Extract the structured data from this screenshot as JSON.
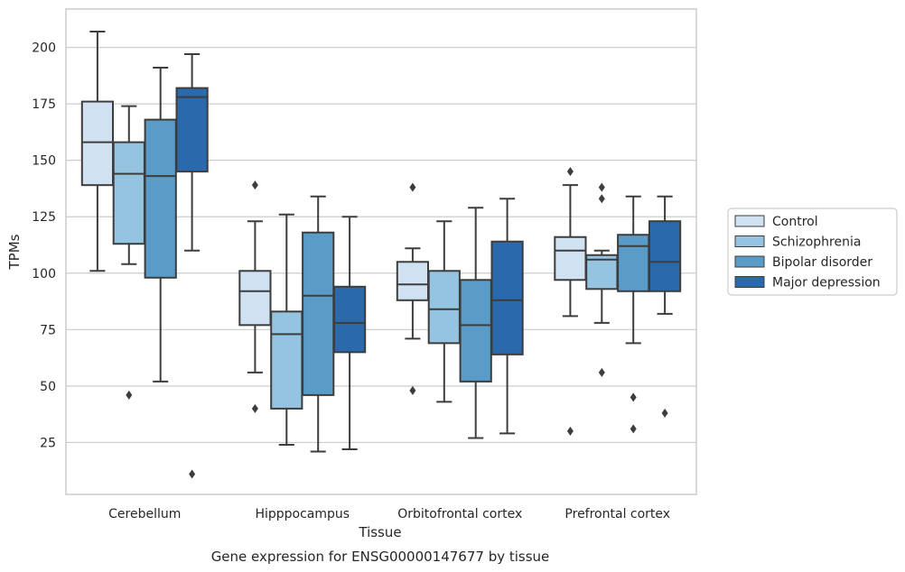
{
  "chart_data": {
    "type": "box",
    "caption": "Gene expression for ENSG00000147677 by tissue",
    "xlabel": "Tissue",
    "ylabel": "TPMs",
    "ylim": [
      2,
      217
    ],
    "yticks": [
      25,
      50,
      75,
      100,
      125,
      150,
      175,
      200
    ],
    "grid": true,
    "legend_position": "right",
    "categories": [
      "Cerebellum",
      "Hipppocampus",
      "Orbitofrontal cortex",
      "Prefrontal cortex"
    ],
    "series": [
      {
        "name": "Control",
        "color": "#d0e1f2",
        "boxes": [
          {
            "whisker_low": 101,
            "q1": 139,
            "median": 158,
            "q3": 176,
            "whisker_high": 207,
            "outliers": []
          },
          {
            "whisker_low": 56,
            "q1": 77,
            "median": 92,
            "q3": 101,
            "whisker_high": 123,
            "outliers": [
              139,
              40
            ]
          },
          {
            "whisker_low": 71,
            "q1": 88,
            "median": 95,
            "q3": 105,
            "whisker_high": 111,
            "outliers": [
              138,
              48
            ]
          },
          {
            "whisker_low": 81,
            "q1": 97,
            "median": 110,
            "q3": 116,
            "whisker_high": 139,
            "outliers": [
              145,
              30
            ]
          }
        ]
      },
      {
        "name": "Schizophrenia",
        "color": "#94c4df",
        "boxes": [
          {
            "whisker_low": 104,
            "q1": 113,
            "median": 144,
            "q3": 158,
            "whisker_high": 174,
            "outliers": [
              46
            ]
          },
          {
            "whisker_low": 24,
            "q1": 40,
            "median": 73,
            "q3": 83,
            "whisker_high": 126,
            "outliers": []
          },
          {
            "whisker_low": 43,
            "q1": 69,
            "median": 84,
            "q3": 101,
            "whisker_high": 123,
            "outliers": []
          },
          {
            "whisker_low": 78,
            "q1": 93,
            "median": 106,
            "q3": 108,
            "whisker_high": 110,
            "outliers": [
              138,
              133,
              56
            ]
          }
        ]
      },
      {
        "name": "Bipolar disorder",
        "color": "#5a9bc7",
        "boxes": [
          {
            "whisker_low": 52,
            "q1": 98,
            "median": 143,
            "q3": 168,
            "whisker_high": 191,
            "outliers": []
          },
          {
            "whisker_low": 21,
            "q1": 46,
            "median": 90,
            "q3": 118,
            "whisker_high": 134,
            "outliers": []
          },
          {
            "whisker_low": 27,
            "q1": 52,
            "median": 77,
            "q3": 97,
            "whisker_high": 129,
            "outliers": []
          },
          {
            "whisker_low": 69,
            "q1": 92,
            "median": 112,
            "q3": 117,
            "whisker_high": 134,
            "outliers": [
              45,
              31
            ]
          }
        ]
      },
      {
        "name": "Major depression",
        "color": "#2a6aac",
        "boxes": [
          {
            "whisker_low": 110,
            "q1": 145,
            "median": 178,
            "q3": 182,
            "whisker_high": 197,
            "outliers": [
              11
            ]
          },
          {
            "whisker_low": 22,
            "q1": 65,
            "median": 78,
            "q3": 94,
            "whisker_high": 125,
            "outliers": []
          },
          {
            "whisker_low": 29,
            "q1": 64,
            "median": 88,
            "q3": 114,
            "whisker_high": 133,
            "outliers": []
          },
          {
            "whisker_low": 82,
            "q1": 92,
            "median": 105,
            "q3": 123,
            "whisker_high": 134,
            "outliers": [
              38
            ]
          }
        ]
      }
    ]
  }
}
